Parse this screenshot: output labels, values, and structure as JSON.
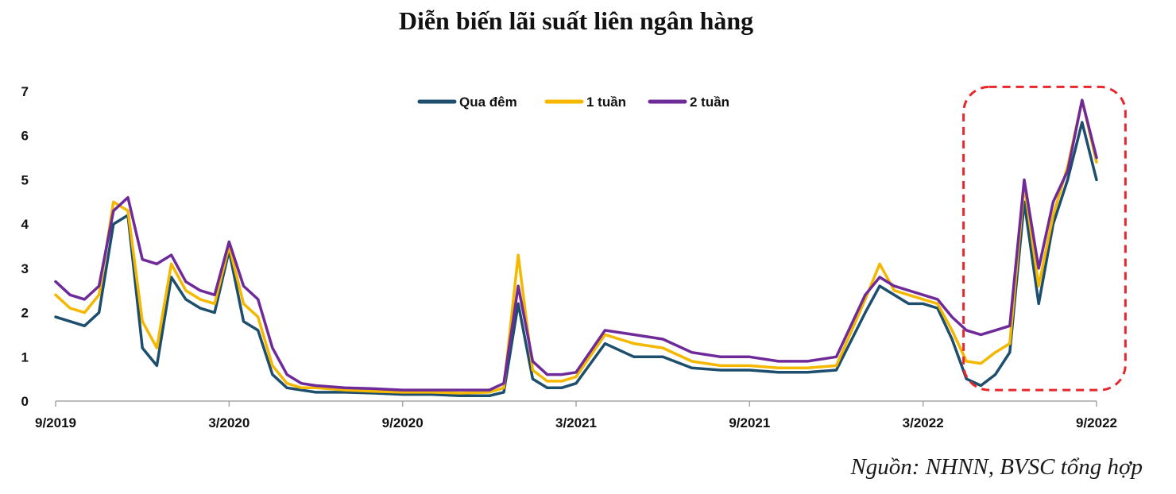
{
  "chart_data": {
    "type": "line",
    "title": "Diễn biến lãi suất liên ngân hàng",
    "xlabel": "",
    "ylabel": "",
    "ylim": [
      0,
      7
    ],
    "yticks": [
      0,
      1,
      2,
      3,
      4,
      5,
      6,
      7
    ],
    "xlim": [
      0,
      36
    ],
    "xticks": [
      {
        "value": 0,
        "label": "9/2019"
      },
      {
        "value": 6,
        "label": "3/2020"
      },
      {
        "value": 12,
        "label": "9/2020"
      },
      {
        "value": 18,
        "label": "3/2021"
      },
      {
        "value": 24,
        "label": "9/2021"
      },
      {
        "value": 30,
        "label": "3/2022"
      },
      {
        "value": 36,
        "label": "9/2022"
      }
    ],
    "legend_position": "top-center",
    "x": [
      0,
      0.5,
      1,
      1.5,
      2,
      2.5,
      3,
      3.5,
      4,
      4.5,
      5,
      5.5,
      6,
      6.5,
      7,
      7.5,
      8,
      8.5,
      9,
      10,
      11,
      12,
      13,
      14,
      15,
      15.5,
      16,
      16.5,
      17,
      17.5,
      18,
      19,
      20,
      21,
      22,
      23,
      24,
      25,
      26,
      27,
      28,
      28.5,
      29,
      29.5,
      30,
      30.5,
      31,
      31.5,
      32,
      32.5,
      33,
      33.5,
      34,
      34.5,
      35,
      35.5,
      36
    ],
    "series": [
      {
        "name": "Qua đêm",
        "color": "#1d4e6e",
        "values": [
          1.9,
          1.8,
          1.7,
          2.0,
          4.0,
          4.2,
          1.2,
          0.8,
          2.8,
          2.3,
          2.1,
          2.0,
          3.4,
          1.8,
          1.6,
          0.6,
          0.3,
          0.25,
          0.2,
          0.2,
          0.18,
          0.15,
          0.15,
          0.12,
          0.12,
          0.2,
          2.2,
          0.5,
          0.3,
          0.3,
          0.4,
          1.3,
          1.0,
          1.0,
          0.75,
          0.7,
          0.7,
          0.65,
          0.65,
          0.7,
          2.0,
          2.6,
          2.4,
          2.2,
          2.2,
          2.1,
          1.4,
          0.5,
          0.35,
          0.6,
          1.1,
          4.5,
          2.2,
          4.0,
          5.0,
          6.3,
          5.0
        ]
      },
      {
        "name": "1 tuần",
        "color": "#f4b800",
        "values": [
          2.4,
          2.1,
          2.0,
          2.4,
          4.5,
          4.3,
          1.8,
          1.2,
          3.1,
          2.5,
          2.3,
          2.2,
          3.5,
          2.2,
          1.9,
          0.8,
          0.4,
          0.3,
          0.3,
          0.25,
          0.22,
          0.2,
          0.2,
          0.18,
          0.2,
          0.3,
          3.3,
          0.7,
          0.45,
          0.45,
          0.55,
          1.5,
          1.3,
          1.2,
          0.9,
          0.8,
          0.8,
          0.75,
          0.75,
          0.8,
          2.3,
          3.1,
          2.5,
          2.4,
          2.3,
          2.2,
          1.6,
          0.9,
          0.85,
          1.1,
          1.3,
          4.9,
          2.6,
          4.2,
          5.3,
          6.8,
          5.4
        ]
      },
      {
        "name": "2 tuần",
        "color": "#6f2a9a",
        "values": [
          2.7,
          2.4,
          2.3,
          2.6,
          4.3,
          4.6,
          3.2,
          3.1,
          3.3,
          2.7,
          2.5,
          2.4,
          3.6,
          2.6,
          2.3,
          1.2,
          0.6,
          0.4,
          0.35,
          0.3,
          0.28,
          0.25,
          0.25,
          0.25,
          0.25,
          0.4,
          2.6,
          0.9,
          0.6,
          0.6,
          0.65,
          1.6,
          1.5,
          1.4,
          1.1,
          1.0,
          1.0,
          0.9,
          0.9,
          1.0,
          2.4,
          2.8,
          2.6,
          2.5,
          2.4,
          2.3,
          1.9,
          1.6,
          1.5,
          1.6,
          1.7,
          5.0,
          3.0,
          4.5,
          5.2,
          6.8,
          5.5
        ]
      }
    ],
    "annotation": {
      "type": "dashed-rounded-box",
      "color": "#e8262b",
      "x_range": [
        31.4,
        37.0
      ],
      "y_range": [
        0.25,
        7.1
      ]
    }
  },
  "source_note": "Nguồn: NHNN, BVSC tổng hợp"
}
